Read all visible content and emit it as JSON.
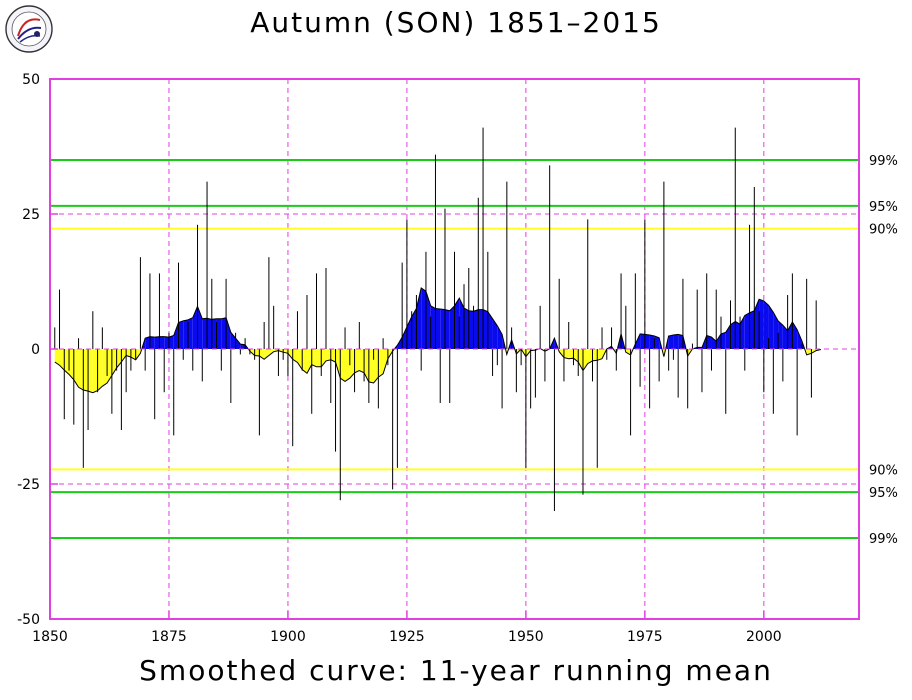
{
  "title": "Autumn (SON) 1851–2015",
  "caption": "Smoothed curve: 11-year running mean",
  "colors": {
    "frame": "#e040e0",
    "positive_fill": "#0a0aee",
    "negative_fill": "#ffff22",
    "sig99_95": "#18cc18",
    "sig90": "#ffff22",
    "bar": "#000000",
    "grid": "#e040e0"
  },
  "chart_data": {
    "type": "bar",
    "xlim": [
      1850,
      2020
    ],
    "ylim": [
      -50,
      50
    ],
    "x_ticks": [
      1850,
      1875,
      1900,
      1925,
      1950,
      1975,
      2000
    ],
    "y_ticks": [
      -50,
      -25,
      0,
      25,
      50
    ],
    "x_tick_labels": [
      "1850",
      "1875",
      "1900",
      "1925",
      "1950",
      "1975",
      "2000"
    ],
    "y_tick_labels": [
      "-50",
      "-25",
      "0",
      "25",
      "50"
    ],
    "grid": true,
    "significance_lines": [
      {
        "label": "99%",
        "value": 35,
        "color": "#18cc18"
      },
      {
        "label": "95%",
        "value": 26.5,
        "color": "#18cc18"
      },
      {
        "label": "90%",
        "value": 22.3,
        "color": "#ffff22"
      },
      {
        "label": "90%",
        "value": -22.3,
        "color": "#ffff22"
      },
      {
        "label": "95%",
        "value": -26.5,
        "color": "#18cc18"
      },
      {
        "label": "99%",
        "value": -35,
        "color": "#18cc18"
      }
    ],
    "year_start": 1851,
    "annual_values": [
      4,
      11,
      -13,
      -4,
      -14,
      2,
      -22,
      -15,
      7,
      -8,
      4,
      -5,
      -12,
      -4,
      -15,
      -8,
      -4,
      -2,
      17,
      -4,
      14,
      -13,
      14,
      -8,
      3,
      -16,
      16,
      -2,
      5,
      -4,
      23,
      -6,
      31,
      13,
      5,
      -4,
      13,
      -10,
      3,
      -1,
      2,
      -1,
      -2,
      -16,
      5,
      17,
      8,
      -5,
      -2,
      -5,
      -18,
      7,
      -4,
      10,
      -12,
      14,
      -5,
      15,
      -10,
      -19,
      -28,
      4,
      -3,
      -8,
      5,
      -6,
      -10,
      -2,
      -11,
      2,
      -3,
      -26,
      -22,
      16,
      24,
      7,
      10,
      -4,
      18,
      6,
      36,
      -10,
      26,
      -10,
      18,
      6,
      12,
      15,
      8,
      28,
      41,
      18,
      -5,
      -3,
      -11,
      31,
      4,
      -8,
      -3,
      -22,
      -11,
      -9,
      8,
      -6,
      34,
      -30,
      13,
      -6,
      5,
      -3,
      -5,
      -27,
      24,
      -6,
      -22,
      4,
      -2,
      4,
      -4,
      14,
      8,
      -16,
      14,
      -7,
      24,
      -11,
      2,
      -6,
      31,
      -4,
      -2,
      -9,
      13,
      -11,
      1,
      11,
      -8,
      14,
      -4,
      11,
      6,
      -12,
      9,
      41,
      6,
      -4,
      23,
      30,
      7,
      -8,
      2,
      -12,
      3,
      -6,
      10,
      14,
      -16,
      1,
      13,
      -9,
      9
    ],
    "smoothed_mean": [
      -2.4,
      -3.0,
      -3.9,
      -4.7,
      -5.7,
      -7.1,
      -7.6,
      -7.8,
      -8.1,
      -7.7,
      -6.9,
      -6.3,
      -4.9,
      -3.5,
      -2.4,
      -1.2,
      -1.5,
      -2.0,
      -0.8,
      2.0,
      2.3,
      2.2,
      2.3,
      2.3,
      2.2,
      2.5,
      4.9,
      5.2,
      5.4,
      5.8,
      7.9,
      5.6,
      5.7,
      5.5,
      5.6,
      5.6,
      5.8,
      3.1,
      2.0,
      0.9,
      0.8,
      -0.4,
      -1.2,
      -1.3,
      -1.9,
      -1.2,
      -0.5,
      -0.3,
      -0.6,
      -0.8,
      -1.9,
      -2.5,
      -3.8,
      -4.5,
      -2.9,
      -3.3,
      -3.3,
      -2.2,
      -2.0,
      -2.4,
      -5.4,
      -6.0,
      -5.4,
      -4.4,
      -4.0,
      -4.4,
      -6.1,
      -6.3,
      -5.2,
      -4.6,
      -1.8,
      -0.4,
      0.7,
      2.2,
      4.1,
      6.0,
      7.5,
      11.3,
      10.7,
      8.0,
      7.5,
      7.4,
      7.3,
      7.1,
      8.0,
      9.4,
      7.6,
      7.1,
      7.0,
      7.3,
      7.3,
      6.9,
      5.6,
      4.3,
      2.7,
      -1.0,
      1.7,
      -0.9,
      0.0,
      -1.4,
      -0.3,
      -0.2,
      0.1,
      -0.4,
      0.0,
      2.0,
      -0.5,
      -1.6,
      -1.8,
      -1.7,
      -2.4,
      -4.0,
      -2.7,
      -2.2,
      -2.1,
      -1.8,
      0.0,
      0.5,
      -0.8,
      2.8,
      -0.6,
      -1.1,
      0.9,
      2.8,
      2.7,
      2.6,
      2.4,
      2.1,
      -1.4,
      2.4,
      2.6,
      2.7,
      2.5,
      -1.3,
      0.0,
      0.3,
      0.3,
      2.5,
      2.2,
      1.4,
      2.8,
      3.1,
      4.5,
      5.1,
      4.6,
      6.2,
      6.7,
      7.1,
      9.2,
      8.9,
      8.1,
      6.8,
      5.2,
      4.4,
      3.4,
      5.0,
      3.6,
      1.5,
      -1.1,
      -0.8,
      -0.3,
      -0.1,
      null,
      null,
      null,
      null,
      null
    ]
  }
}
